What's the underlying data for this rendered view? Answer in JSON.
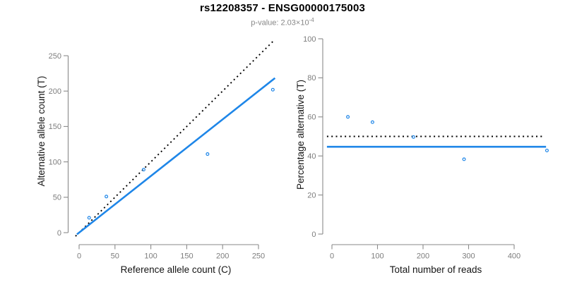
{
  "header": {
    "title": "rs12208357 - ENSG00000175003",
    "pvalue_text": "p-value: 2.03×10",
    "pvalue_exponent": "-4"
  },
  "colors": {
    "accent_blue": "#1E86E8",
    "dotted_black": "#000000",
    "axis_gray": "#8a8a8a",
    "tick_label_gray": "#7d7d7d",
    "axis_title_color": "#151515",
    "subtitle_gray": "#878787",
    "background": "#ffffff"
  },
  "chart_data": [
    {
      "type": "scatter",
      "panel": "left",
      "xlabel": "Reference allele count (C)",
      "ylabel": "Alternative allele count (T)",
      "xlim": [
        0,
        270
      ],
      "ylim": [
        0,
        273
      ],
      "x_ticks": [
        0,
        50,
        100,
        150,
        200,
        250
      ],
      "y_ticks": [
        0,
        50,
        100,
        150,
        200,
        250
      ],
      "grid": false,
      "legend": "none",
      "points": {
        "x": [
          14,
          38,
          90,
          179,
          270
        ],
        "y": [
          21,
          51,
          89,
          111,
          202
        ]
      },
      "lines": [
        {
          "name": "identity-line",
          "style": "dotted",
          "color": "#000000",
          "slope": 1,
          "intercept": 0
        },
        {
          "name": "fit-line",
          "style": "solid",
          "color": "#1E86E8",
          "slope": 0.8,
          "intercept": 0
        }
      ]
    },
    {
      "type": "scatter",
      "panel": "right",
      "xlabel": "Total number of reads",
      "ylabel": "Percentage alternative (T)",
      "xlim": [
        0,
        472
      ],
      "ylim": [
        0,
        100
      ],
      "x_ticks": [
        0,
        100,
        200,
        300,
        400
      ],
      "y_ticks": [
        0,
        20,
        40,
        60,
        80,
        100
      ],
      "grid": false,
      "legend": "none",
      "points": {
        "x": [
          35,
          89,
          179,
          290,
          472
        ],
        "y": [
          60.0,
          57.3,
          49.7,
          38.3,
          42.8
        ]
      },
      "lines": [
        {
          "name": "reference-line",
          "style": "dotted",
          "color": "#000000",
          "hline": 50
        },
        {
          "name": "fit-line",
          "style": "solid",
          "color": "#1E86E8",
          "hline": 44.7
        }
      ]
    }
  ]
}
